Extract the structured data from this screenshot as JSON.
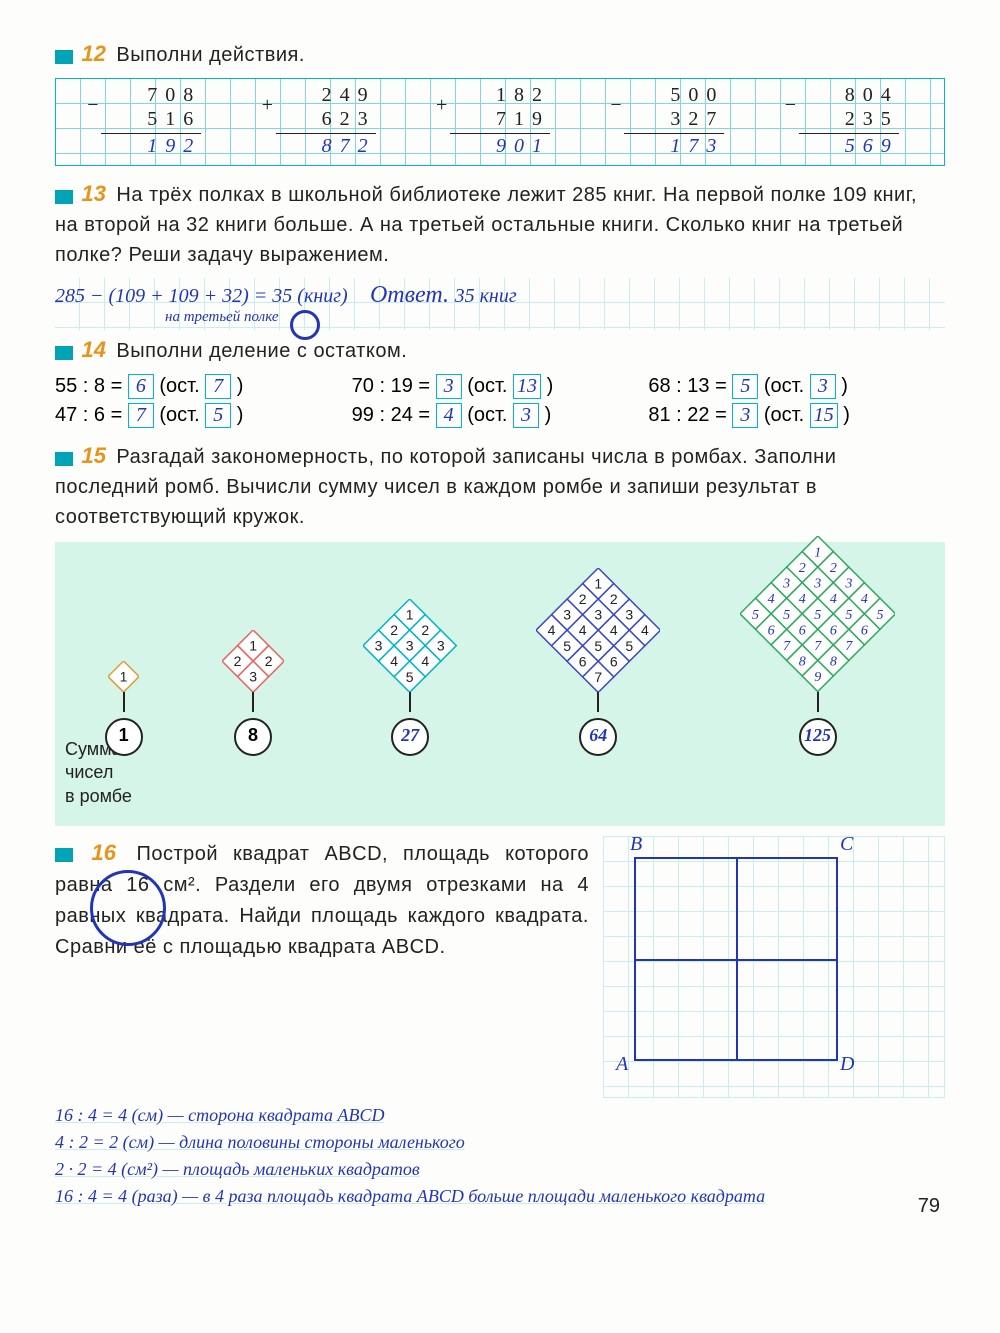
{
  "page_number": "79",
  "task12": {
    "num": "12",
    "title": "Выполни действия.",
    "calcs": [
      {
        "op": "−",
        "a": "708",
        "b": "516",
        "r": "192"
      },
      {
        "op": "+",
        "a": "249",
        "b": "623",
        "r": "872"
      },
      {
        "op": "+",
        "a": "182",
        "b": "719",
        "r": "901"
      },
      {
        "op": "−",
        "a": "500",
        "b": "327",
        "r": "173"
      },
      {
        "op": "−",
        "a": "804",
        "b": "235",
        "r": "569"
      }
    ]
  },
  "task13": {
    "num": "13",
    "text": "На трёх полках в школьной библиотеке лежит 285 книг. На первой полке 109 книг, на второй на 32 книги больше. А на третьей остальные книги. Сколько книг на третьей полке? Реши задачу выражением.",
    "answer_expr": "285 − (109 + 109 + 32) = 35 (книг)",
    "answer_note": "на третьей полке",
    "answer_word": "Ответ.",
    "answer_val": "35 книг"
  },
  "task14": {
    "num": "14",
    "title": "Выполни деление с остатком.",
    "rows": [
      [
        {
          "expr": "55 : 8 =",
          "q": "6",
          "r": "7"
        },
        {
          "expr": "70 : 19 =",
          "q": "3",
          "r": "13"
        },
        {
          "expr": "68 : 13 =",
          "q": "5",
          "r": "3"
        }
      ],
      [
        {
          "expr": "47 : 6 =",
          "q": "7",
          "r": "5"
        },
        {
          "expr": "99 : 24 =",
          "q": "4",
          "r": "3"
        },
        {
          "expr": "81 : 22 =",
          "q": "3",
          "r": "15"
        }
      ]
    ],
    "ost": "(ост.",
    "close": ")"
  },
  "task15": {
    "num": "15",
    "text": "Разгадай закономерность, по которой записаны числа в ромбах. Заполни последний ромб. Вычисли сумму чисел в каждом ромбе и запиши результат в соответствующий кружок.",
    "sum_label_l1": "Сумма",
    "sum_label_l2": "чисел",
    "sum_label_l3": "в ромбе",
    "rombs": [
      {
        "size": 1,
        "color": "#e39a3a",
        "border": "#e39a3a",
        "sum": "1",
        "sum_printed": true
      },
      {
        "size": 2,
        "color": "#e8625e",
        "border": "#e8625e",
        "sum": "8",
        "sum_printed": true
      },
      {
        "size": 3,
        "color": "#00b5c5",
        "border": "#00b5c5",
        "sum": "27",
        "sum_printed": false
      },
      {
        "size": 4,
        "color": "#3949c4",
        "border": "#3949c4",
        "sum": "64",
        "sum_printed": false
      },
      {
        "size": 5,
        "color": "#2faa5c",
        "border": "#2faa5c",
        "sum": "125",
        "sum_printed": false
      }
    ]
  },
  "task16": {
    "num": "16",
    "text": "Построй квадрат ABCD, площадь которого равна 16 см². Раздели его двумя отрезками на 4 равных квадрата. Найди площадь каждого квадрата. Сравни её с площадью квадрата ABCD.",
    "labels": {
      "A": "A",
      "B": "B",
      "C": "C",
      "D": "D"
    },
    "solution": [
      "16 : 4 = 4 (см) — сторона квадрата ABCD",
      "4 : 2 = 2 (см) — длина половины стороны маленького",
      "2 · 2 = 4 (см²) — площадь маленьких квадратов",
      "16 : 4 = 4 (раза) — в 4 раза площадь квадрата ABCD больше площади маленького квадрата"
    ]
  },
  "colors": {
    "task_num": "#e8941a",
    "marker": "#00a5b5",
    "grid": "#7dd8e0",
    "handwriting": "#2236b5",
    "panel_bg": "#d4f5e8"
  }
}
